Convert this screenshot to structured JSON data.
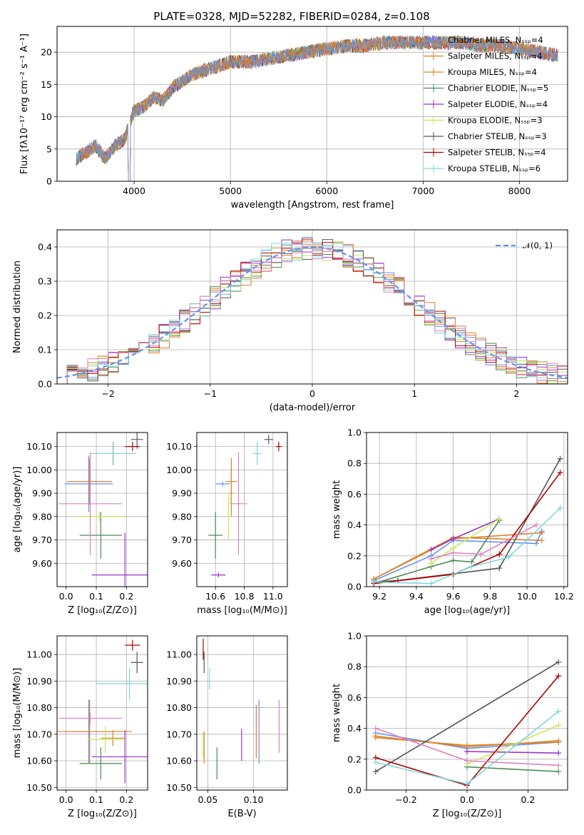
{
  "colors": [
    "#6495ED",
    "#E07B2C",
    "#D8882E",
    "#4E8B57",
    "#9932CC",
    "#C8E85A",
    "#555555",
    "#B00000",
    "#7FD7DE",
    "#E080C0"
  ],
  "chart_data": [
    {
      "id": "spectrum",
      "type": "line",
      "title": "PLATE=0328, MJD=52282, FIBERID=0284, z=0.108",
      "xlabel": "wavelength [Angstrom, rest frame]",
      "ylabel": "Flux [fλ10⁻¹⁷ erg cm⁻² s⁻¹ A⁻¹]",
      "xlim": [
        3200,
        8500
      ],
      "ylim": [
        0,
        24
      ],
      "xticks": [
        4000,
        5000,
        6000,
        7000,
        8000
      ],
      "yticks": [
        0,
        5,
        10,
        15,
        20
      ],
      "legend_position": "right",
      "legend": [
        "Chabrier MILES, Nₛₛₚ=4",
        "Salpeter MILES, Nₛₛₚ=4",
        "Kroupa MILES, Nₛₛₚ=4",
        "Chabrier ELODIE, Nₛₛₚ=5",
        "Salpeter ELODIE, Nₛₛₚ=4",
        "Kroupa ELODIE, Nₛₛₚ=3",
        "Chabrier STELIB, Nₛₛₚ=3",
        "Salpeter STELIB, Nₛₛₚ=4",
        "Kroupa STELIB, Nₛₛₚ=6"
      ],
      "x": [
        3400,
        3500,
        3600,
        3700,
        3800,
        3900,
        4000,
        4100,
        4200,
        4300,
        4400,
        4500,
        4600,
        4800,
        5000,
        5200,
        5400,
        5600,
        5800,
        6000,
        6200,
        6400,
        6600,
        6800,
        7000,
        7200,
        7400,
        7600,
        7800,
        8000,
        8200,
        8400
      ],
      "y": [
        3.5,
        4.5,
        5.5,
        3.5,
        5.5,
        6.5,
        11,
        11.5,
        13,
        12.5,
        14.5,
        15.5,
        16.5,
        17.5,
        18.5,
        18.5,
        19,
        19.5,
        20,
        20.5,
        21,
        21,
        21.5,
        21.5,
        21.5,
        21.5,
        21.5,
        21,
        21,
        20.5,
        20,
        19.5
      ]
    },
    {
      "id": "residuals",
      "type": "histogram",
      "xlabel": "(data-model)/error",
      "ylabel": "Normed distribution",
      "xlim": [
        -2.5,
        2.5
      ],
      "ylim": [
        0,
        0.45
      ],
      "xticks": [
        -2,
        -1,
        0,
        1,
        2
      ],
      "yticks": [
        0.0,
        0.1,
        0.2,
        0.3,
        0.4
      ],
      "legend": [
        "𝒩(0, 1)"
      ],
      "legend_position": "top-right",
      "bin_width": 0.1,
      "grid": true
    },
    {
      "id": "age_vs_Z",
      "type": "errorbar",
      "xlabel": "Z [log₁₀(Z/Z⊙)]",
      "ylabel": "age  [log₁₀(age/yr)]",
      "xlim": [
        -0.03,
        0.27
      ],
      "ylim": [
        9.5,
        10.16
      ],
      "xticks": [
        0.0,
        0.1,
        0.2
      ],
      "yticks": [
        9.6,
        9.7,
        9.8,
        9.9,
        10.0,
        10.1
      ],
      "points": [
        {
          "x": 0.075,
          "y": 9.94,
          "xerr": 0.08,
          "yerr": 0.12
        },
        {
          "x": 0.078,
          "y": 9.95,
          "xerr": 0.075,
          "yerr": 0.1
        },
        {
          "x": 0.156,
          "y": 10.07,
          "xerr": 0.075,
          "yerr": 0.05
        },
        {
          "x": 0.115,
          "y": 9.72,
          "xerr": 0.07,
          "yerr": 0.1
        },
        {
          "x": 0.195,
          "y": 9.55,
          "xerr": 0.11,
          "yerr": 0.18
        },
        {
          "x": 0.11,
          "y": 9.8,
          "xerr": 0.08,
          "yerr": 0.02
        },
        {
          "x": 0.235,
          "y": 10.13,
          "xerr": 0.02,
          "yerr": 0.04
        },
        {
          "x": 0.22,
          "y": 10.1,
          "xerr": 0.025,
          "yerr": 0.02
        },
        {
          "x": 0.155,
          "y": 10.07,
          "xerr": 0.075,
          "yerr": 0.05
        },
        {
          "x": 0.08,
          "y": 9.855,
          "xerr": 0.105,
          "yerr": 0.22
        }
      ]
    },
    {
      "id": "age_vs_mass",
      "type": "errorbar",
      "xlabel": "mass [log₁₀(M/M⊙)]",
      "ylabel": "",
      "xlim": [
        10.47,
        11.1
      ],
      "ylim": [
        9.5,
        10.16
      ],
      "xticks": [
        10.6,
        10.8,
        11.0
      ],
      "yticks": [
        9.6,
        9.7,
        9.8,
        9.9,
        10.0,
        10.1
      ],
      "points": [
        {
          "x": 10.65,
          "y": 9.94,
          "xerr": 0.05,
          "yerr": 0.01
        },
        {
          "x": 10.71,
          "y": 9.95,
          "xerr": 0.04,
          "yerr": 0.1
        },
        {
          "x": 10.71,
          "y": 9.9,
          "xerr": 0.01,
          "yerr": 0.1
        },
        {
          "x": 10.6,
          "y": 9.72,
          "xerr": 0.05,
          "yerr": 0.1
        },
        {
          "x": 10.62,
          "y": 9.55,
          "xerr": 0.05,
          "yerr": 0.01
        },
        {
          "x": 10.69,
          "y": 9.8,
          "xerr": 0.005,
          "yerr": 0.1
        },
        {
          "x": 10.97,
          "y": 10.13,
          "xerr": 0.03,
          "yerr": 0.02
        },
        {
          "x": 11.04,
          "y": 10.1,
          "xerr": 0.02,
          "yerr": 0.02
        },
        {
          "x": 10.89,
          "y": 10.07,
          "xerr": 0.03,
          "yerr": 0.05
        },
        {
          "x": 10.76,
          "y": 9.855,
          "xerr": 0.06,
          "yerr": 0.22
        }
      ]
    },
    {
      "id": "mass_weight_vs_age",
      "type": "line",
      "xlabel": "age  [log₁₀(age/yr)]",
      "ylabel": "mass weight",
      "xlim": [
        9.13,
        10.22
      ],
      "ylim": [
        0,
        1
      ],
      "xticks": [
        9.2,
        9.4,
        9.6,
        9.8,
        10.0,
        10.2
      ],
      "yticks": [
        0.0,
        0.2,
        0.4,
        0.6,
        0.8,
        1.0
      ],
      "grid": true,
      "series": [
        {
          "x": [
            9.17,
            9.48,
            9.6,
            10.05,
            10.08
          ],
          "y": [
            0.04,
            0.2,
            0.3,
            0.28,
            0.36
          ]
        },
        {
          "x": [
            9.17,
            9.6,
            10.08
          ],
          "y": [
            0.05,
            0.31,
            0.35
          ]
        },
        {
          "x": [
            9.17,
            9.6,
            10.08
          ],
          "y": [
            0.05,
            0.32,
            0.3
          ]
        },
        {
          "x": [
            9.17,
            9.48,
            9.6,
            9.7,
            9.85
          ],
          "y": [
            0.02,
            0.13,
            0.17,
            0.16,
            0.43
          ]
        },
        {
          "x": [
            9.48,
            9.6,
            9.85
          ],
          "y": [
            0.24,
            0.31,
            0.44
          ]
        },
        {
          "x": [
            9.48,
            9.6,
            9.85
          ],
          "y": [
            0.15,
            0.25,
            0.44
          ]
        },
        {
          "x": [
            9.17,
            9.3,
            9.85,
            10.18
          ],
          "y": [
            0.03,
            0.04,
            0.12,
            0.83
          ]
        },
        {
          "x": [
            9.17,
            9.6,
            9.85,
            10.18
          ],
          "y": [
            0.02,
            0.08,
            0.21,
            0.74
          ]
        },
        {
          "x": [
            9.17,
            9.48,
            9.7,
            9.9,
            10.18
          ],
          "y": [
            0.03,
            0.02,
            0.13,
            0.19,
            0.51
          ]
        },
        {
          "x": [
            9.48,
            9.6,
            9.75,
            10.05
          ],
          "y": [
            0.18,
            0.22,
            0.21,
            0.4
          ]
        }
      ]
    },
    {
      "id": "mass_vs_Z",
      "type": "errorbar",
      "xlabel": "Z [log₁₀(Z/Z⊙)]",
      "ylabel": "mass [log₁₀(M/M⊙)]",
      "xlim": [
        -0.03,
        0.27
      ],
      "ylim": [
        10.49,
        11.07
      ],
      "xticks": [
        0.0,
        0.1,
        0.2
      ],
      "yticks": [
        10.5,
        10.6,
        10.7,
        10.8,
        10.9,
        11.0
      ],
      "points": [
        {
          "x": 0.075,
          "y": 10.71,
          "xerr": 0.08,
          "yerr": 0.12
        },
        {
          "x": 0.078,
          "y": 10.71,
          "xerr": 0.14,
          "yerr": 0.12
        },
        {
          "x": 0.155,
          "y": 10.685,
          "xerr": 0.04,
          "yerr": 0.03
        },
        {
          "x": 0.115,
          "y": 10.59,
          "xerr": 0.07,
          "yerr": 0.06
        },
        {
          "x": 0.195,
          "y": 10.615,
          "xerr": 0.11,
          "yerr": 0.1
        },
        {
          "x": 0.13,
          "y": 10.68,
          "xerr": 0.06,
          "yerr": 0.05
        },
        {
          "x": 0.235,
          "y": 10.97,
          "xerr": 0.02,
          "yerr": 0.04
        },
        {
          "x": 0.22,
          "y": 11.035,
          "xerr": 0.025,
          "yerr": 0.02
        },
        {
          "x": 0.21,
          "y": 10.89,
          "xerr": 0.11,
          "yerr": 0.06
        },
        {
          "x": 0.08,
          "y": 10.76,
          "xerr": 0.105,
          "yerr": 0.02
        }
      ]
    },
    {
      "id": "mass_vs_EBV",
      "type": "errorbar",
      "xlabel": "E(B-V)",
      "ylabel": "",
      "xlim": [
        0.038,
        0.137
      ],
      "ylim": [
        10.49,
        11.07
      ],
      "xticks": [
        0.05,
        0.1
      ],
      "yticks": [
        10.5,
        10.6,
        10.7,
        10.8,
        10.9,
        11.0
      ],
      "points": [
        {
          "x": 0.106,
          "y": 10.71,
          "xerr": 0,
          "yerr": 0.12
        },
        {
          "x": 0.103,
          "y": 10.71,
          "xerr": 0,
          "yerr": 0.1
        },
        {
          "x": 0.046,
          "y": 10.65,
          "xerr": 0,
          "yerr": 0.06
        },
        {
          "x": 0.06,
          "y": 10.59,
          "xerr": 0,
          "yerr": 0.06
        },
        {
          "x": 0.087,
          "y": 10.66,
          "xerr": 0,
          "yerr": 0.06
        },
        {
          "x": 0.045,
          "y": 10.66,
          "xerr": 0,
          "yerr": 0.05
        },
        {
          "x": 0.046,
          "y": 10.97,
          "xerr": 0,
          "yerr": 0.04
        },
        {
          "x": 0.045,
          "y": 11.02,
          "xerr": 0,
          "yerr": 0.04
        },
        {
          "x": 0.052,
          "y": 10.91,
          "xerr": 0,
          "yerr": 0.04
        },
        {
          "x": 0.128,
          "y": 10.73,
          "xerr": 0,
          "yerr": 0.1
        }
      ]
    },
    {
      "id": "mass_weight_vs_Z",
      "type": "line",
      "xlabel": "Z [log₁₀(Z/Z⊙)]",
      "ylabel": "mass weight",
      "xlim": [
        -0.33,
        0.33
      ],
      "ylim": [
        0,
        1
      ],
      "xticks": [
        -0.2,
        0.0,
        0.2
      ],
      "yticks": [
        0.0,
        0.2,
        0.4,
        0.6,
        0.8,
        1.0
      ],
      "grid": true,
      "series": [
        {
          "x": [
            -0.3,
            0.0,
            0.3
          ],
          "y": [
            0.37,
            0.27,
            0.31
          ]
        },
        {
          "x": [
            -0.3,
            0.0,
            0.3
          ],
          "y": [
            0.35,
            0.28,
            0.32
          ]
        },
        {
          "x": [
            -0.3,
            0.0,
            0.3
          ],
          "y": [
            0.34,
            0.29,
            0.31
          ]
        },
        {
          "x": [
            0.0,
            0.3
          ],
          "y": [
            0.15,
            0.12
          ]
        },
        {
          "x": [
            0.0,
            0.3
          ],
          "y": [
            0.25,
            0.24
          ]
        },
        {
          "x": [
            0.0,
            0.3
          ],
          "y": [
            0.17,
            0.42
          ]
        },
        {
          "x": [
            -0.3,
            0.3
          ],
          "y": [
            0.12,
            0.83
          ]
        },
        {
          "x": [
            -0.3,
            0.0,
            0.3
          ],
          "y": [
            0.21,
            0.03,
            0.74
          ]
        },
        {
          "x": [
            -0.3,
            0.0,
            0.3
          ],
          "y": [
            0.18,
            0.04,
            0.51
          ]
        },
        {
          "x": [
            -0.3,
            0.0,
            0.3
          ],
          "y": [
            0.4,
            0.19,
            0.16
          ]
        }
      ]
    }
  ]
}
